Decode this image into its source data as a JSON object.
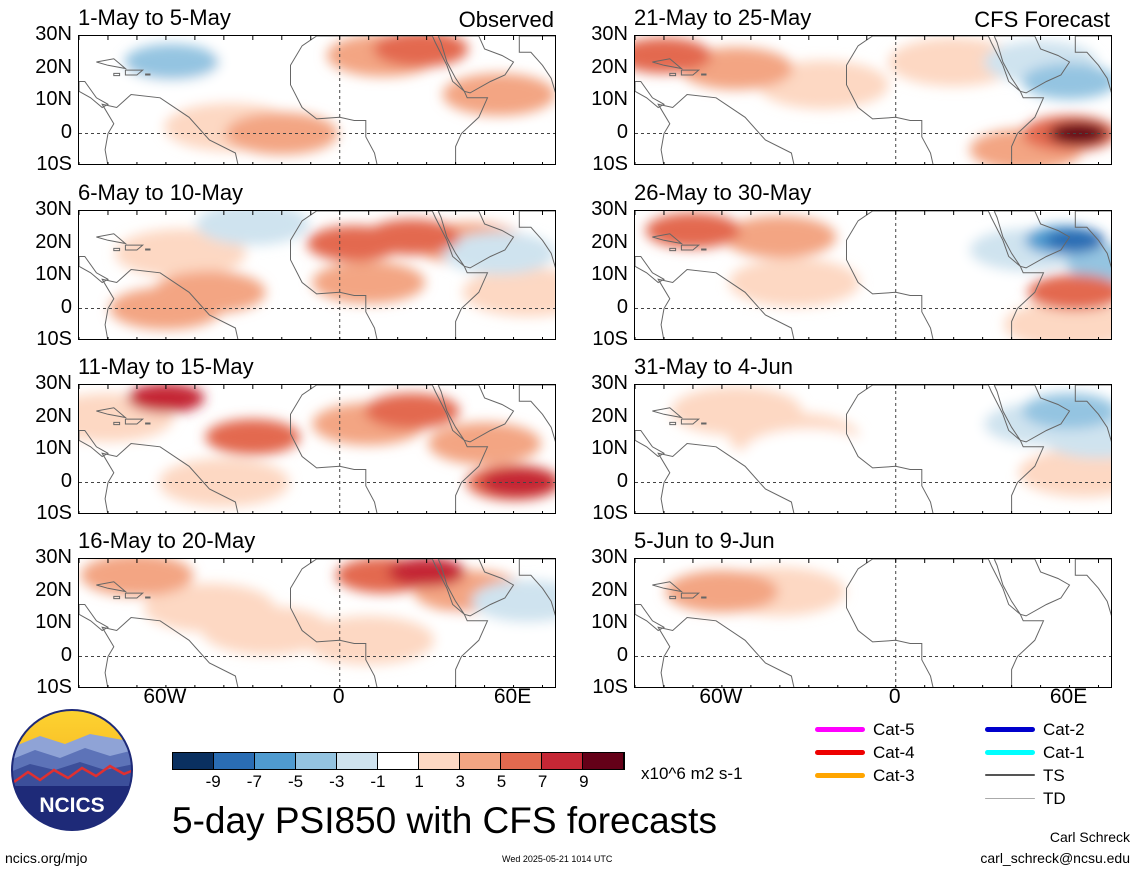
{
  "panels": [
    {
      "title": "1-May to 5-May",
      "corner": "Observed",
      "blobs": [
        {
          "lon": -58,
          "lat": 22,
          "v": -5
        },
        {
          "lon": -75,
          "lat": 13,
          "v": -1
        },
        {
          "lon": -40,
          "lat": 18,
          "v": -1
        },
        {
          "lon": -38,
          "lat": 2,
          "v": 1
        },
        {
          "lon": -20,
          "lat": 0,
          "v": 3
        },
        {
          "lon": 15,
          "lat": 24,
          "v": 3
        },
        {
          "lon": 28,
          "lat": 26,
          "v": 5
        },
        {
          "lon": 55,
          "lat": 12,
          "v": 3
        },
        {
          "lon": 62,
          "lat": -8,
          "v": -1
        }
      ]
    },
    {
      "title": "21-May to 25-May",
      "corner": "CFS Forecast",
      "blobs": [
        {
          "lon": -80,
          "lat": 24,
          "v": 5
        },
        {
          "lon": -55,
          "lat": 20,
          "v": 3
        },
        {
          "lon": -25,
          "lat": 15,
          "v": 1
        },
        {
          "lon": 20,
          "lat": 22,
          "v": 1
        },
        {
          "lon": 50,
          "lat": 22,
          "v": -3
        },
        {
          "lon": 60,
          "lat": 16,
          "v": -5
        },
        {
          "lon": 60,
          "lat": 0,
          "v": 5
        },
        {
          "lon": 63,
          "lat": 0,
          "v": 9
        },
        {
          "lon": 45,
          "lat": -5,
          "v": 3
        },
        {
          "lon": -75,
          "lat": -3,
          "v": -1
        }
      ]
    },
    {
      "title": "6-May to 10-May",
      "corner": "",
      "blobs": [
        {
          "lon": -30,
          "lat": 26,
          "v": -3
        },
        {
          "lon": -55,
          "lat": 17,
          "v": 1
        },
        {
          "lon": -45,
          "lat": 5,
          "v": 3
        },
        {
          "lon": -60,
          "lat": 0,
          "v": 3
        },
        {
          "lon": 5,
          "lat": 20,
          "v": 5
        },
        {
          "lon": 25,
          "lat": 22,
          "v": 5
        },
        {
          "lon": 10,
          "lat": 8,
          "v": 3
        },
        {
          "lon": 45,
          "lat": 20,
          "v": 3
        },
        {
          "lon": 55,
          "lat": 17,
          "v": -3
        },
        {
          "lon": 65,
          "lat": 5,
          "v": 1
        }
      ]
    },
    {
      "title": "26-May to 30-May",
      "corner": "",
      "blobs": [
        {
          "lon": -70,
          "lat": 24,
          "v": 5
        },
        {
          "lon": -40,
          "lat": 22,
          "v": 3
        },
        {
          "lon": -35,
          "lat": 8,
          "v": 1
        },
        {
          "lon": 20,
          "lat": 15,
          "v": -1
        },
        {
          "lon": 45,
          "lat": 18,
          "v": -3
        },
        {
          "lon": 58,
          "lat": 21,
          "v": -7
        },
        {
          "lon": 62,
          "lat": 21,
          "v": -9
        },
        {
          "lon": 75,
          "lat": 14,
          "v": -5
        },
        {
          "lon": 62,
          "lat": 5,
          "v": 5
        },
        {
          "lon": 60,
          "lat": -5,
          "v": 1
        },
        {
          "lon": -80,
          "lat": -5,
          "v": -1
        }
      ]
    },
    {
      "title": "11-May to 15-May",
      "corner": "",
      "blobs": [
        {
          "lon": -60,
          "lat": 26,
          "v": 7
        },
        {
          "lon": -80,
          "lat": 20,
          "v": 1
        },
        {
          "lon": -30,
          "lat": 14,
          "v": 5
        },
        {
          "lon": 10,
          "lat": 18,
          "v": 3
        },
        {
          "lon": 25,
          "lat": 22,
          "v": 5
        },
        {
          "lon": 50,
          "lat": 12,
          "v": 3
        },
        {
          "lon": 60,
          "lat": 0,
          "v": 5
        },
        {
          "lon": 62,
          "lat": 0,
          "v": 7
        },
        {
          "lon": -40,
          "lat": 0,
          "v": 1
        },
        {
          "lon": -85,
          "lat": 0,
          "v": -1
        }
      ]
    },
    {
      "title": "31-May to 4-Jun",
      "corner": "",
      "blobs": [
        {
          "lon": -55,
          "lat": 22,
          "v": 1
        },
        {
          "lon": -35,
          "lat": 14,
          "v": 1
        },
        {
          "lon": -30,
          "lat": 9,
          "v": -1
        },
        {
          "lon": 30,
          "lat": 15,
          "v": -1
        },
        {
          "lon": 50,
          "lat": 18,
          "v": -3
        },
        {
          "lon": 60,
          "lat": 22,
          "v": -5
        },
        {
          "lon": 70,
          "lat": 14,
          "v": -3
        },
        {
          "lon": 65,
          "lat": 3,
          "v": 1
        },
        {
          "lon": -80,
          "lat": -5,
          "v": -1
        }
      ]
    },
    {
      "title": "16-May to 20-May",
      "corner": "",
      "blobs": [
        {
          "lon": -70,
          "lat": 25,
          "v": 3
        },
        {
          "lon": -45,
          "lat": 15,
          "v": 1
        },
        {
          "lon": -25,
          "lat": 8,
          "v": 1
        },
        {
          "lon": 15,
          "lat": 25,
          "v": 5
        },
        {
          "lon": 30,
          "lat": 26,
          "v": 7
        },
        {
          "lon": 45,
          "lat": 20,
          "v": 3
        },
        {
          "lon": 65,
          "lat": 17,
          "v": -3
        },
        {
          "lon": 60,
          "lat": 10,
          "v": -1
        },
        {
          "lon": -75,
          "lat": 0,
          "v": -1
        },
        {
          "lon": 10,
          "lat": 5,
          "v": 1
        }
      ]
    },
    {
      "title": "5-Jun to 9-Jun",
      "corner": "",
      "blobs": [
        {
          "lon": -60,
          "lat": 20,
          "v": 3
        },
        {
          "lon": -40,
          "lat": 20,
          "v": 1
        },
        {
          "lon": 60,
          "lat": 20,
          "v": -1
        },
        {
          "lon": 70,
          "lat": 12,
          "v": -1
        },
        {
          "lon": -85,
          "lat": -3,
          "v": -1
        },
        {
          "lon": 5,
          "lat": -7,
          "v": -1
        }
      ]
    }
  ],
  "axes": {
    "lat_labels": [
      "30N",
      "20N",
      "10N",
      "0",
      "10S"
    ],
    "lon_labels": [
      "60W",
      "0",
      "60E"
    ]
  },
  "colorbar": {
    "colors": [
      "#0a3060",
      "#2a6db4",
      "#4f9bd0",
      "#94c4e1",
      "#cfe3ef",
      "#ffffff",
      "#fdd8c3",
      "#f3a583",
      "#e3694f",
      "#c52735",
      "#640018"
    ],
    "labels": [
      "-9",
      "-7",
      "-5",
      "-3",
      "-1",
      "1",
      "3",
      "5",
      "7",
      "9"
    ],
    "units": "x10^6 m2 s-1"
  },
  "legend": {
    "left": [
      {
        "label": "Cat-5",
        "color": "#ff00ff"
      },
      {
        "label": "Cat-4",
        "color": "#ee0000"
      },
      {
        "label": "Cat-3",
        "color": "#ffa500"
      }
    ],
    "right": [
      {
        "label": "Cat-2",
        "color": "#0000cc"
      },
      {
        "label": "Cat-1",
        "color": "#00ffff"
      },
      {
        "label": "TS",
        "color": "#555555"
      },
      {
        "label": "TD",
        "color": "#aaaaaa"
      }
    ]
  },
  "logo_text": "NCICS",
  "main_title": "5-day PSI850 with CFS forecasts",
  "footer": {
    "url": "ncics.org/mjo",
    "timestamp": "Wed 2025-05-21 1014 UTC",
    "author": "Carl Schreck",
    "email": "carl_schreck@ncsu.edu"
  }
}
